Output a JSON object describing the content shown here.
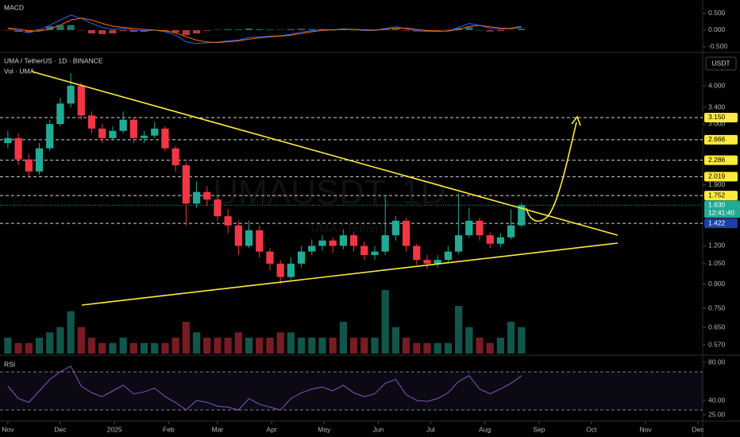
{
  "header": {
    "macd_label": "MACD",
    "symbol": "UMA / TetherUS · 1D · BINANCE",
    "volume_label": "Vol · UMA",
    "rsi_label": "RSI",
    "currency": "USDT",
    "watermark": "UMAUSDT, 1D",
    "watermark_sub": "UMA / TetherUS"
  },
  "chart_data": {
    "type": "candlestick",
    "log_scale": true,
    "up_color": "#22ab94",
    "down_color": "#f23645",
    "x": [
      0,
      6,
      12,
      18,
      24,
      30,
      36,
      42,
      48,
      54,
      60,
      66,
      72,
      78,
      84,
      90,
      96,
      102,
      108,
      114,
      120,
      126,
      132,
      138,
      144,
      150,
      156,
      162,
      168,
      174,
      180,
      186,
      192,
      198,
      204,
      210,
      216,
      222,
      228,
      234,
      240,
      246,
      252,
      258,
      264,
      270,
      276,
      282,
      288,
      294
    ],
    "open": [
      2.6,
      2.7,
      2.3,
      2.1,
      2.5,
      3.0,
      3.5,
      4.0,
      3.2,
      2.9,
      2.7,
      2.85,
      3.1,
      2.7,
      2.75,
      2.9,
      2.5,
      2.2,
      1.65,
      1.8,
      1.7,
      1.5,
      1.4,
      1.2,
      1.35,
      1.15,
      1.05,
      0.95,
      1.05,
      1.15,
      1.2,
      1.25,
      1.2,
      1.3,
      1.2,
      1.12,
      1.15,
      1.3,
      1.45,
      1.2,
      1.08,
      1.05,
      1.08,
      1.15,
      1.3,
      1.45,
      1.3,
      1.22,
      1.28,
      1.4
    ],
    "high": [
      2.85,
      2.8,
      2.4,
      2.6,
      3.1,
      3.65,
      4.4,
      4.1,
      3.3,
      3.0,
      2.95,
      3.3,
      3.15,
      2.85,
      3.05,
      2.95,
      2.55,
      2.25,
      1.95,
      1.88,
      1.75,
      1.58,
      1.45,
      1.45,
      1.4,
      1.18,
      1.08,
      1.1,
      1.2,
      1.26,
      1.3,
      1.28,
      1.36,
      1.33,
      1.24,
      1.2,
      1.76,
      1.5,
      1.48,
      1.22,
      1.12,
      1.12,
      1.2,
      1.78,
      1.6,
      1.48,
      1.33,
      1.32,
      1.58,
      1.66
    ],
    "low": [
      2.5,
      2.2,
      2.0,
      2.05,
      2.45,
      2.95,
      3.4,
      3.1,
      2.8,
      2.6,
      2.65,
      2.8,
      2.6,
      2.6,
      2.7,
      2.45,
      2.1,
      1.4,
      1.6,
      1.62,
      1.45,
      1.32,
      1.12,
      1.18,
      1.1,
      1.0,
      0.9,
      0.93,
      1.02,
      1.12,
      1.16,
      1.14,
      1.17,
      1.15,
      1.08,
      1.08,
      1.12,
      1.25,
      1.15,
      1.04,
      1.01,
      1.02,
      1.06,
      1.13,
      1.28,
      1.25,
      1.18,
      1.19,
      1.26,
      1.38
    ],
    "close": [
      2.7,
      2.3,
      2.1,
      2.5,
      3.0,
      3.5,
      4.0,
      3.2,
      2.9,
      2.7,
      2.85,
      3.1,
      2.7,
      2.75,
      2.9,
      2.5,
      2.2,
      1.65,
      1.8,
      1.7,
      1.5,
      1.4,
      1.2,
      1.35,
      1.15,
      1.05,
      0.95,
      1.05,
      1.15,
      1.2,
      1.25,
      1.2,
      1.3,
      1.2,
      1.12,
      1.15,
      1.3,
      1.45,
      1.2,
      1.08,
      1.05,
      1.08,
      1.15,
      1.3,
      1.45,
      1.3,
      1.22,
      1.28,
      1.4,
      1.63
    ],
    "volume": [
      3,
      2,
      2,
      3,
      4,
      5,
      8,
      5,
      3,
      2,
      2,
      3,
      2,
      2,
      2,
      2,
      3,
      6,
      4,
      3,
      3,
      3,
      4,
      3,
      3,
      3,
      4,
      4,
      3,
      3,
      3,
      3,
      6,
      3,
      3,
      3,
      12,
      5,
      3,
      2,
      2,
      2,
      2,
      9,
      5,
      3,
      2,
      3,
      6,
      5
    ],
    "ylim": [
      0.534,
      5.08
    ],
    "yticks": [
      {
        "value": 4,
        "label": "4.000"
      },
      {
        "value": 3.4,
        "label": "3.400"
      },
      {
        "value": 3,
        "label": "3.000"
      },
      {
        "value": 1.9,
        "label": "1.900"
      },
      {
        "value": 1.2,
        "label": "1.200"
      },
      {
        "value": 1.05,
        "label": "1.050"
      },
      {
        "value": 0.9,
        "label": "0.900"
      },
      {
        "value": 0.75,
        "label": "0.750"
      },
      {
        "value": 0.65,
        "label": "0.650"
      },
      {
        "value": 0.57,
        "label": "0.570"
      }
    ],
    "xlim": [
      -4.5,
      397.7
    ],
    "xticks": [
      {
        "value": 0,
        "label": "Nov"
      },
      {
        "value": 30,
        "label": "Dec"
      },
      {
        "value": 61,
        "label": "2025"
      },
      {
        "value": 92,
        "label": "Feb"
      },
      {
        "value": 120,
        "label": "Mar"
      },
      {
        "value": 151,
        "label": "Apr"
      },
      {
        "value": 181,
        "label": "May"
      },
      {
        "value": 212,
        "label": "Jun"
      },
      {
        "value": 242,
        "label": "Jul"
      },
      {
        "value": 273,
        "label": "Aug"
      },
      {
        "value": 304,
        "label": "Sep"
      },
      {
        "value": 334,
        "label": "Oct"
      },
      {
        "value": 365,
        "label": "Nov"
      },
      {
        "value": 395,
        "label": "Dec"
      }
    ],
    "levels": [
      {
        "value": 3.15,
        "label": "3.150",
        "color": "#ffeb3b"
      },
      {
        "value": 2.666,
        "label": "2.666",
        "color": "#ffeb3b"
      },
      {
        "value": 2.286,
        "label": "2.286",
        "color": "#ffeb3b"
      },
      {
        "value": 2.019,
        "label": "2.019",
        "color": "#ffeb3b"
      },
      {
        "value": 1.752,
        "label": "1.752",
        "color": "#ffeb3b"
      },
      {
        "value": 1.422,
        "label": "1.422",
        "color": "#1e3fa8"
      }
    ],
    "last_price": {
      "value": 1.63,
      "label": "1.630",
      "countdown": "12:41:40",
      "color": "#22ab94"
    }
  },
  "macd": {
    "ylim": [
      -0.62,
      0.9
    ],
    "yticks": [
      {
        "value": 0.5,
        "label": "0.500"
      },
      {
        "value": 0,
        "label": "0.000"
      },
      {
        "value": -0.5,
        "label": "-0.500"
      }
    ],
    "macd": [
      0.05,
      -0.02,
      -0.08,
      0.0,
      0.15,
      0.3,
      0.45,
      0.35,
      0.2,
      0.08,
      0.02,
      0.05,
      0.0,
      -0.03,
      0.0,
      -0.05,
      -0.15,
      -0.35,
      -0.4,
      -0.38,
      -0.36,
      -0.32,
      -0.3,
      -0.22,
      -0.2,
      -0.18,
      -0.17,
      -0.12,
      -0.06,
      -0.02,
      0.02,
      0.01,
      0.04,
      0.02,
      -0.01,
      -0.01,
      0.05,
      0.1,
      0.04,
      -0.02,
      -0.04,
      -0.04,
      -0.02,
      0.08,
      0.2,
      0.14,
      0.06,
      0.03,
      0.06,
      0.12
    ],
    "signal": [
      0.06,
      0.03,
      -0.02,
      -0.03,
      0.03,
      0.15,
      0.3,
      0.36,
      0.3,
      0.2,
      0.12,
      0.08,
      0.05,
      0.02,
      0.0,
      -0.02,
      -0.08,
      -0.2,
      -0.3,
      -0.36,
      -0.37,
      -0.35,
      -0.32,
      -0.27,
      -0.23,
      -0.2,
      -0.18,
      -0.15,
      -0.1,
      -0.05,
      -0.01,
      0.01,
      0.02,
      0.02,
      0.01,
      0.0,
      0.02,
      0.06,
      0.06,
      0.02,
      -0.01,
      -0.03,
      -0.03,
      0.02,
      0.11,
      0.14,
      0.1,
      0.06,
      0.05,
      0.08
    ],
    "hist": [
      -0.01,
      -0.05,
      -0.06,
      0.03,
      0.12,
      0.15,
      0.15,
      -0.01,
      -0.1,
      -0.12,
      -0.1,
      -0.03,
      -0.05,
      -0.05,
      0.0,
      -0.03,
      -0.07,
      -0.15,
      -0.1,
      -0.02,
      0.01,
      0.03,
      0.02,
      0.05,
      0.03,
      0.02,
      0.01,
      0.03,
      0.04,
      0.03,
      0.03,
      0.0,
      0.02,
      0.0,
      -0.02,
      -0.01,
      0.03,
      0.04,
      -0.02,
      -0.04,
      -0.03,
      -0.01,
      0.01,
      0.06,
      0.09,
      0.0,
      -0.04,
      -0.03,
      0.01,
      0.04
    ]
  },
  "rsi": {
    "ylim": [
      20,
      85
    ],
    "yticks": [
      {
        "value": 80,
        "label": "80.00"
      },
      {
        "value": 40,
        "label": "40.00"
      },
      {
        "value": 25,
        "label": "25.00"
      }
    ],
    "bands": [
      70,
      30
    ],
    "values": [
      55,
      42,
      38,
      50,
      62,
      70,
      76,
      55,
      48,
      44,
      50,
      56,
      47,
      49,
      53,
      44,
      38,
      30,
      40,
      38,
      34,
      33,
      30,
      42,
      36,
      33,
      30,
      42,
      48,
      52,
      54,
      50,
      56,
      48,
      44,
      47,
      58,
      62,
      46,
      40,
      39,
      42,
      48,
      60,
      66,
      52,
      47,
      52,
      58,
      66
    ]
  }
}
